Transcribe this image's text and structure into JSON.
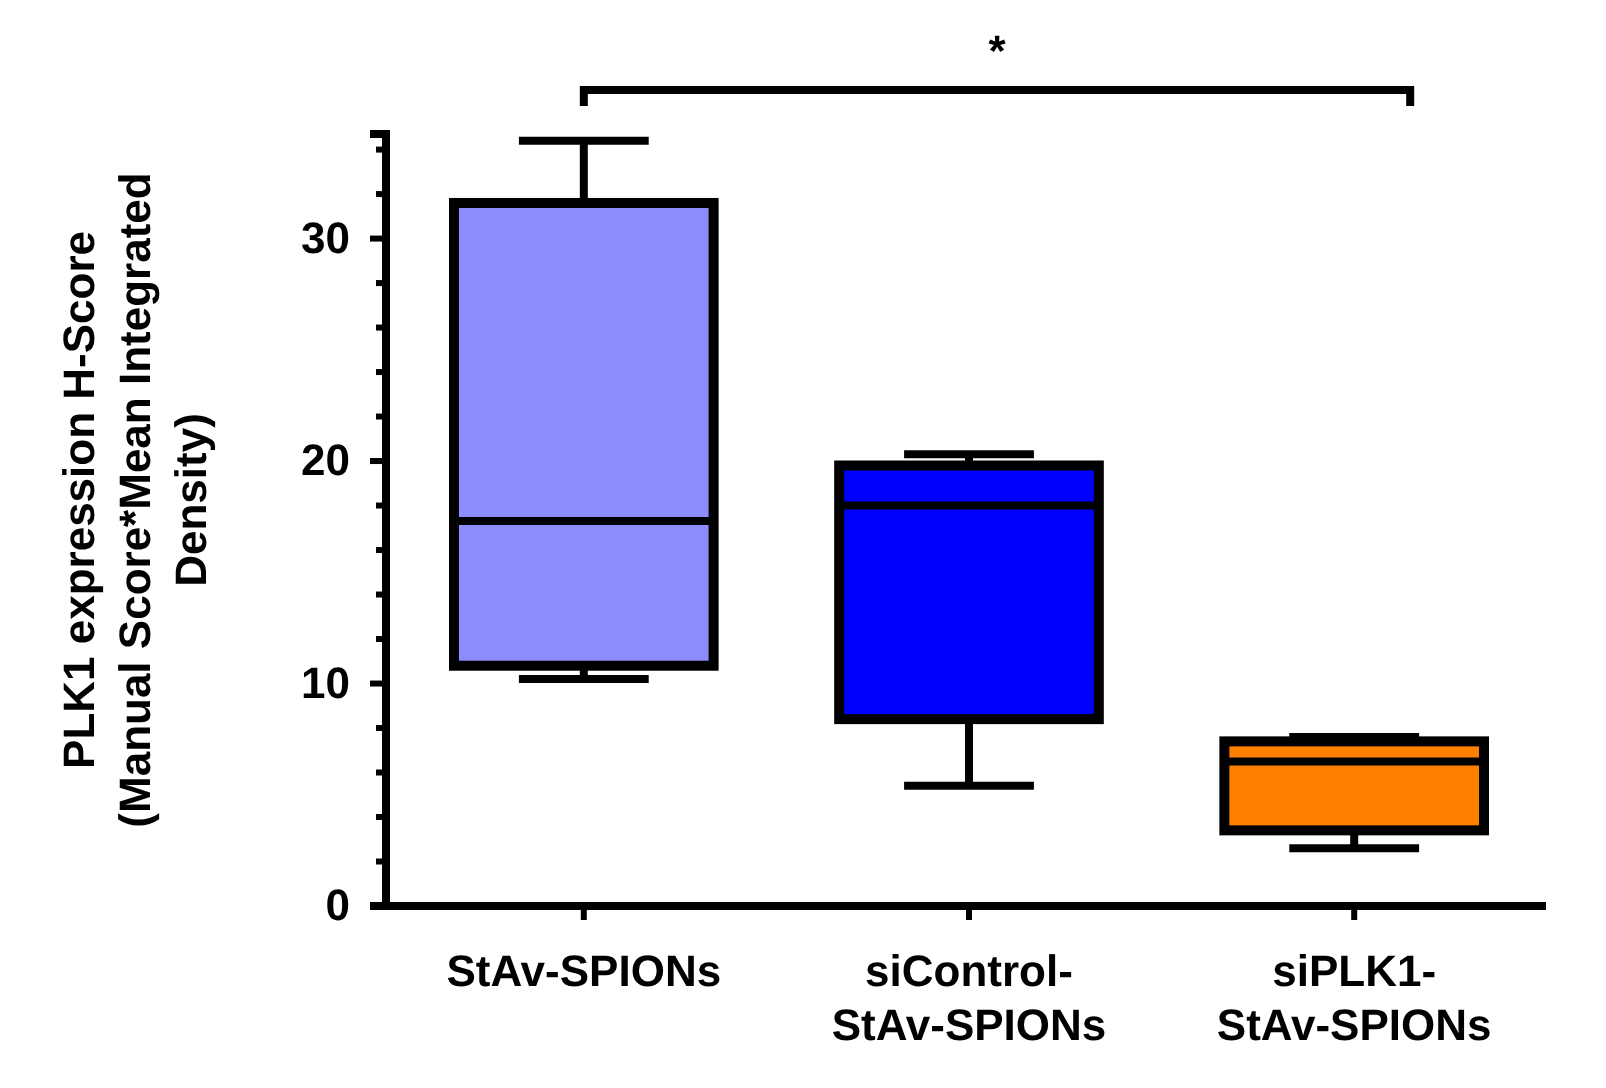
{
  "chart_data": {
    "type": "box",
    "ylabel": "PLK1 expression H-Score\n(Manual Score*Mean Integrated\nDensity)",
    "categories": [
      "StAv-SPIONs",
      "siControl-\nStAv-SPIONs",
      "siPLK1-\nStAv-SPIONs"
    ],
    "colors": [
      "#8c8cff",
      "#0000ff",
      "#ff8000"
    ],
    "boxes": [
      {
        "low": 10.2,
        "q1": 10.8,
        "median": 17.3,
        "q3": 31.6,
        "high": 34.4
      },
      {
        "low": 5.4,
        "q1": 8.4,
        "median": 18,
        "q3": 19.8,
        "high": 20.3
      },
      {
        "low": 2.6,
        "q1": 3.4,
        "median": 6.5,
        "q3": 7.4,
        "high": 7.6
      }
    ],
    "ylim": [
      0,
      34.7
    ],
    "yticks": [
      0,
      {
        "value": 2,
        "label": null
      },
      {
        "value": 4,
        "label": null
      },
      {
        "value": 6,
        "label": null
      },
      {
        "value": 8,
        "label": null
      },
      10,
      {
        "value": 12,
        "label": null
      },
      {
        "value": 14,
        "label": null
      },
      {
        "value": 16,
        "label": null
      },
      {
        "value": 18,
        "label": null
      },
      20,
      {
        "value": 22,
        "label": null
      },
      {
        "value": 24,
        "label": null
      },
      {
        "value": 26,
        "label": null
      },
      {
        "value": 28,
        "label": null
      },
      30,
      {
        "value": 32,
        "label": null
      },
      {
        "value": 34,
        "label": null
      }
    ],
    "annotations": [
      "*"
    ],
    "grid": false
  }
}
